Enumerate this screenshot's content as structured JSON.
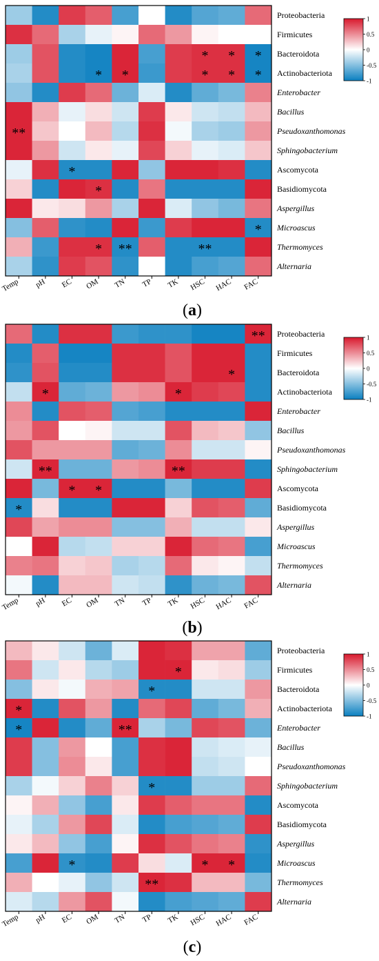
{
  "colors": {
    "neg": "#0a7fc0",
    "mid": "#ffffff",
    "pos": "#d8192d"
  },
  "chart_data": [
    {
      "type": "heatmap",
      "label": "(a)",
      "rows": [
        "Proteobacteria",
        "Firmicutes",
        "Bacteroidota",
        "Actinobacteriota",
        "Enterobacter",
        "Bacillus",
        "Pseudoxanthomonas",
        "Sphingobacterium",
        "Ascomycota",
        "Basidiomycota",
        "Aspergillus",
        "Microascus",
        "Thermomyces",
        "Alternaria"
      ],
      "italic_rows": [
        "Enterobacter",
        "Bacillus",
        "Pseudoxanthomonas",
        "Sphingobacterium",
        "Aspergillus",
        "Microascus",
        "Thermomyces",
        "Alternaria"
      ],
      "columns": [
        "Temp",
        "pH",
        "EC",
        "OM",
        "TN",
        "TP",
        "TK",
        "HSC",
        "HAC",
        "FAC"
      ],
      "colorbar": {
        "ticks": [
          1,
          0.5,
          0,
          -0.5,
          -1
        ],
        "tick_labels": [
          "1",
          "0.5",
          "0",
          "-0.5",
          "-1"
        ],
        "range": [
          -1,
          1
        ]
      },
      "values": [
        [
          -0.4,
          -0.9,
          0.85,
          0.7,
          -0.75,
          0.0,
          -0.9,
          -0.7,
          -0.65,
          0.65
        ],
        [
          0.9,
          0.65,
          -0.35,
          -0.1,
          0.05,
          0.65,
          0.45,
          0.05,
          0.0,
          0.0
        ],
        [
          -0.4,
          0.75,
          -0.9,
          -0.95,
          0.95,
          -0.75,
          0.85,
          0.9,
          0.9,
          -0.95
        ],
        [
          -0.35,
          0.75,
          -0.9,
          -0.95,
          0.95,
          -0.8,
          0.85,
          0.9,
          0.9,
          -0.95
        ],
        [
          -0.45,
          -0.9,
          0.85,
          0.65,
          -0.6,
          -0.15,
          -0.9,
          -0.65,
          -0.55,
          0.55
        ],
        [
          0.95,
          0.35,
          -0.1,
          0.15,
          -0.2,
          0.85,
          0.1,
          -0.2,
          -0.25,
          0.3
        ],
        [
          0.95,
          0.25,
          0.0,
          0.3,
          -0.3,
          0.9,
          -0.05,
          -0.35,
          -0.4,
          0.45
        ],
        [
          0.95,
          0.45,
          -0.2,
          0.1,
          -0.1,
          0.8,
          0.2,
          -0.1,
          -0.15,
          0.25
        ],
        [
          -0.1,
          0.9,
          -0.9,
          -0.9,
          0.95,
          -0.45,
          0.95,
          0.95,
          0.9,
          -0.9
        ],
        [
          0.2,
          -0.9,
          0.95,
          0.9,
          -0.9,
          0.6,
          -0.9,
          -0.9,
          -0.9,
          0.95
        ],
        [
          0.95,
          0.1,
          0.15,
          0.45,
          -0.35,
          0.95,
          -0.15,
          -0.45,
          -0.55,
          0.6
        ],
        [
          -0.5,
          0.7,
          -0.85,
          -0.9,
          0.95,
          -0.8,
          0.85,
          0.95,
          0.95,
          -0.9
        ],
        [
          0.35,
          -0.8,
          0.9,
          0.9,
          -0.9,
          0.7,
          -0.9,
          -0.9,
          -0.9,
          0.95
        ],
        [
          -0.35,
          -0.85,
          0.85,
          0.75,
          -0.85,
          0.0,
          -0.9,
          -0.75,
          -0.7,
          0.65
        ]
      ],
      "significance": [
        {
          "row": 2,
          "col": 7,
          "mark": "*"
        },
        {
          "row": 2,
          "col": 8,
          "mark": "*"
        },
        {
          "row": 2,
          "col": 9,
          "mark": "*"
        },
        {
          "row": 3,
          "col": 3,
          "mark": "*"
        },
        {
          "row": 3,
          "col": 4,
          "mark": "*"
        },
        {
          "row": 3,
          "col": 7,
          "mark": "*"
        },
        {
          "row": 3,
          "col": 8,
          "mark": "*"
        },
        {
          "row": 3,
          "col": 9,
          "mark": "*"
        },
        {
          "row": 6,
          "col": 0,
          "mark": "**"
        },
        {
          "row": 8,
          "col": 2,
          "mark": "*"
        },
        {
          "row": 9,
          "col": 3,
          "mark": "*"
        },
        {
          "row": 11,
          "col": 9,
          "mark": "*"
        },
        {
          "row": 12,
          "col": 3,
          "mark": "*"
        },
        {
          "row": 12,
          "col": 4,
          "mark": "**"
        },
        {
          "row": 12,
          "col": 7,
          "mark": "**"
        }
      ]
    },
    {
      "type": "heatmap",
      "label": "(b)",
      "rows": [
        "Proteobacteria",
        "Firmicutes",
        "Bacteroidota",
        "Actinobacteriota",
        "Enterobacter",
        "Bacillus",
        "Pseudoxanthomonas",
        "Sphingobacterium",
        "Ascomycota",
        "Basidiomycota",
        "Aspergillus",
        "Microascus",
        "Thermomyces",
        "Alternaria"
      ],
      "italic_rows": [
        "Enterobacter",
        "Bacillus",
        "Pseudoxanthomonas",
        "Sphingobacterium",
        "Aspergillus",
        "Microascus",
        "Thermomyces",
        "Alternaria"
      ],
      "columns": [
        "Temp",
        "pH",
        "EC",
        "OM",
        "TN",
        "TP",
        "TK",
        "HSC",
        "HAC",
        "FAC"
      ],
      "colorbar": {
        "ticks": [
          1,
          0.5,
          0,
          -0.5,
          -1
        ],
        "tick_labels": [
          "1",
          "0.5",
          "0",
          "-0.5",
          "-1"
        ],
        "range": [
          -1,
          1
        ]
      },
      "values": [
        [
          0.65,
          -0.9,
          0.9,
          0.9,
          -0.8,
          -0.85,
          -0.85,
          -0.95,
          -0.95,
          0.95
        ],
        [
          -0.9,
          0.7,
          -0.95,
          -0.95,
          0.9,
          0.9,
          0.75,
          0.95,
          0.95,
          -0.9
        ],
        [
          -0.85,
          0.75,
          -0.9,
          -0.9,
          0.9,
          0.9,
          0.75,
          0.95,
          0.95,
          -0.9
        ],
        [
          -0.25,
          0.95,
          -0.65,
          -0.6,
          0.45,
          0.5,
          0.95,
          0.85,
          0.8,
          -0.9
        ],
        [
          0.5,
          -0.9,
          0.75,
          0.7,
          -0.7,
          -0.75,
          -0.9,
          -0.9,
          -0.9,
          0.95
        ],
        [
          0.45,
          0.75,
          0.0,
          0.05,
          -0.2,
          -0.2,
          0.75,
          0.3,
          0.25,
          -0.45
        ],
        [
          0.75,
          0.45,
          0.45,
          0.45,
          -0.65,
          -0.6,
          0.5,
          -0.2,
          -0.2,
          0.05
        ],
        [
          -0.2,
          0.95,
          -0.6,
          -0.6,
          0.45,
          0.5,
          0.95,
          0.85,
          0.85,
          -0.9
        ],
        [
          0.95,
          -0.55,
          0.95,
          0.95,
          -0.9,
          -0.9,
          -0.55,
          -0.9,
          -0.9,
          0.85
        ],
        [
          -0.9,
          0.15,
          -0.9,
          -0.9,
          0.95,
          0.95,
          0.2,
          0.75,
          0.7,
          -0.65
        ],
        [
          0.8,
          0.4,
          0.5,
          0.5,
          -0.5,
          -0.5,
          0.35,
          -0.25,
          -0.25,
          0.1
        ],
        [
          0.0,
          0.95,
          -0.3,
          -0.25,
          0.2,
          0.2,
          0.95,
          0.65,
          0.6,
          -0.75
        ],
        [
          0.55,
          0.6,
          0.2,
          0.25,
          -0.35,
          -0.3,
          0.65,
          0.1,
          0.05,
          -0.25
        ],
        [
          -0.05,
          -0.9,
          0.3,
          0.3,
          -0.2,
          -0.25,
          -0.85,
          -0.6,
          -0.55,
          0.75
        ]
      ],
      "significance": [
        {
          "row": 0,
          "col": 9,
          "mark": "**"
        },
        {
          "row": 2,
          "col": 8,
          "mark": "*"
        },
        {
          "row": 3,
          "col": 1,
          "mark": "*"
        },
        {
          "row": 3,
          "col": 6,
          "mark": "*"
        },
        {
          "row": 7,
          "col": 1,
          "mark": "**"
        },
        {
          "row": 7,
          "col": 6,
          "mark": "**"
        },
        {
          "row": 8,
          "col": 2,
          "mark": "*"
        },
        {
          "row": 8,
          "col": 3,
          "mark": "*"
        },
        {
          "row": 9,
          "col": 0,
          "mark": "*"
        }
      ]
    },
    {
      "type": "heatmap",
      "label": "(c)",
      "rows": [
        "Proteobacteria",
        "Firmicutes",
        "Bacteroidota",
        "Actinobacteriota",
        "Enterobacter",
        "Bacillus",
        "Pseudoxanthomonas",
        "Sphingobacterium",
        "Ascomycota",
        "Basidiomycota",
        "Aspergillus",
        "Microascus",
        "Thermomyces",
        "Alternaria"
      ],
      "italic_rows": [
        "Enterobacter",
        "Bacillus",
        "Pseudoxanthomonas",
        "Sphingobacterium",
        "Aspergillus",
        "Microascus",
        "Thermomyces",
        "Alternaria"
      ],
      "columns": [
        "Temp",
        "pH",
        "EC",
        "OM",
        "TN",
        "TP",
        "TK",
        "HSC",
        "HAC",
        "FAC"
      ],
      "colorbar": {
        "ticks": [
          1,
          0.5,
          0,
          -0.5,
          -1
        ],
        "tick_labels": [
          "1",
          "0.5",
          "0",
          "-0.5",
          "-1"
        ],
        "range": [
          -1,
          1
        ]
      },
      "values": [
        [
          0.3,
          0.1,
          -0.2,
          -0.6,
          -0.15,
          0.95,
          0.9,
          0.4,
          0.4,
          -0.65
        ],
        [
          0.6,
          -0.2,
          0.1,
          -0.3,
          -0.4,
          0.95,
          0.95,
          0.1,
          0.15,
          -0.4
        ],
        [
          -0.5,
          0.1,
          -0.05,
          0.35,
          0.4,
          -0.9,
          -0.9,
          -0.2,
          -0.2,
          0.45
        ],
        [
          0.95,
          -0.9,
          0.75,
          0.45,
          -0.9,
          0.65,
          0.8,
          -0.65,
          -0.55,
          0.35
        ],
        [
          -0.95,
          0.95,
          -0.9,
          -0.65,
          0.95,
          -0.35,
          -0.55,
          0.8,
          0.75,
          -0.6
        ],
        [
          0.85,
          -0.5,
          0.45,
          0.0,
          -0.75,
          0.9,
          0.95,
          -0.2,
          -0.15,
          -0.1
        ],
        [
          0.85,
          -0.5,
          0.5,
          0.1,
          -0.75,
          0.9,
          0.95,
          -0.25,
          -0.2,
          0.0
        ],
        [
          -0.35,
          -0.05,
          0.2,
          0.55,
          0.2,
          -0.9,
          -0.9,
          -0.4,
          -0.4,
          0.65
        ],
        [
          0.05,
          0.35,
          -0.45,
          -0.75,
          0.1,
          0.85,
          0.7,
          0.6,
          0.6,
          -0.9
        ],
        [
          -0.1,
          -0.35,
          0.45,
          0.8,
          -0.15,
          -0.9,
          -0.75,
          -0.7,
          -0.65,
          0.85
        ],
        [
          0.1,
          0.3,
          -0.45,
          -0.75,
          0.05,
          0.9,
          0.75,
          0.6,
          0.55,
          -0.85
        ],
        [
          -0.75,
          0.95,
          -0.85,
          -0.9,
          0.85,
          0.15,
          -0.15,
          0.95,
          0.95,
          -0.9
        ],
        [
          0.35,
          0.0,
          -0.1,
          -0.45,
          -0.2,
          0.95,
          0.9,
          0.3,
          0.3,
          -0.55
        ],
        [
          -0.15,
          -0.3,
          0.45,
          0.75,
          -0.05,
          -0.9,
          -0.75,
          -0.7,
          -0.65,
          0.85
        ]
      ],
      "significance": [
        {
          "row": 1,
          "col": 6,
          "mark": "*"
        },
        {
          "row": 2,
          "col": 5,
          "mark": "*"
        },
        {
          "row": 3,
          "col": 0,
          "mark": "*"
        },
        {
          "row": 4,
          "col": 0,
          "mark": "*"
        },
        {
          "row": 4,
          "col": 4,
          "mark": "**"
        },
        {
          "row": 7,
          "col": 5,
          "mark": "*"
        },
        {
          "row": 11,
          "col": 2,
          "mark": "*"
        },
        {
          "row": 11,
          "col": 7,
          "mark": "*"
        },
        {
          "row": 11,
          "col": 8,
          "mark": "*"
        },
        {
          "row": 12,
          "col": 5,
          "mark": "**"
        }
      ]
    }
  ]
}
